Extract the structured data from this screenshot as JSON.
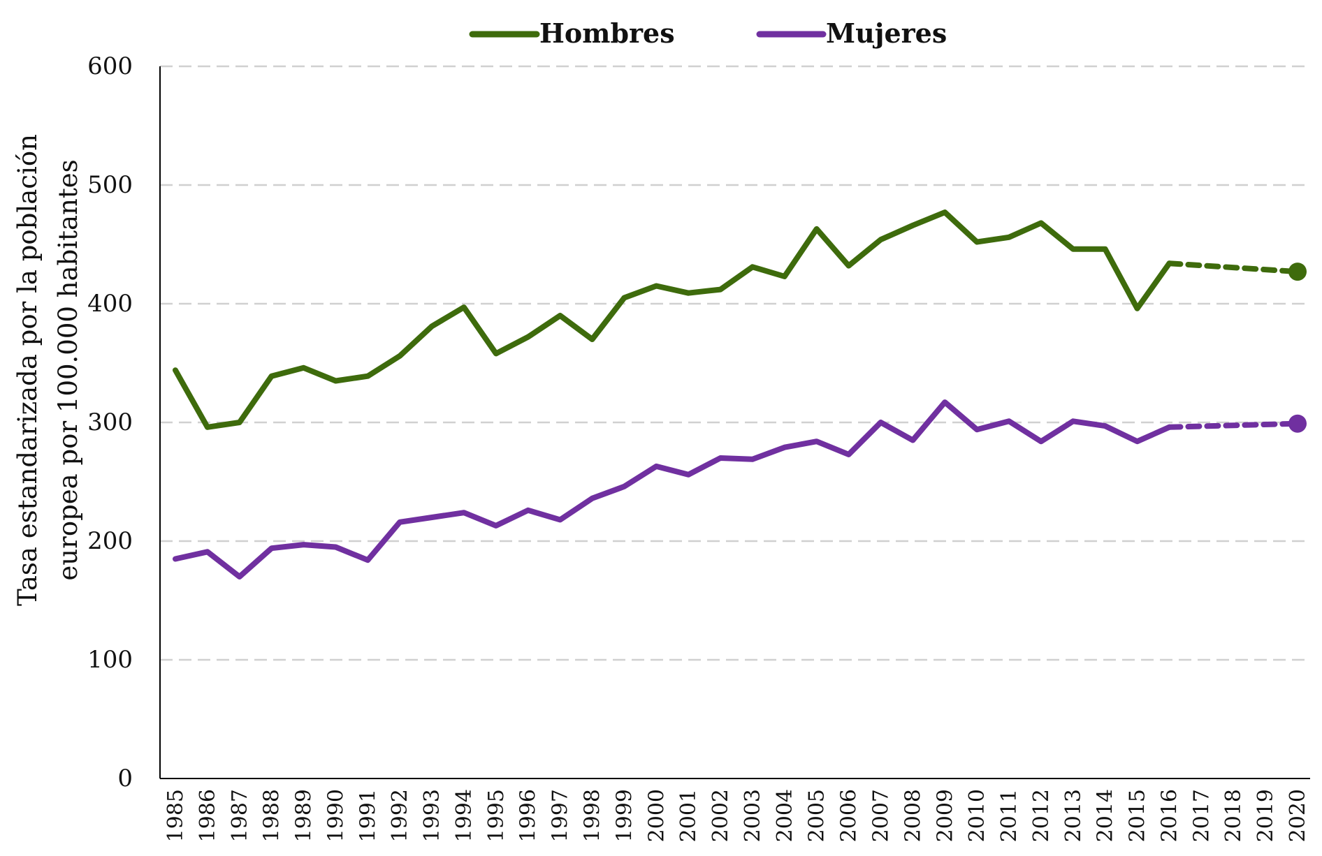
{
  "chart_data": {
    "type": "line",
    "xlabel": "",
    "ylabel_lines": [
      "Tasa estandarizada por la población",
      "europea por 100.000 habitantes"
    ],
    "ylim": [
      0,
      600
    ],
    "yticks": [
      0,
      100,
      200,
      300,
      400,
      500,
      600
    ],
    "grid": "horizontal-dashed",
    "legend_position": "top-center",
    "categories": [
      "1985",
      "1986",
      "1987",
      "1988",
      "1989",
      "1990",
      "1991",
      "1992",
      "1993",
      "1994",
      "1995",
      "1996",
      "1997",
      "1998",
      "1999",
      "2000",
      "2001",
      "2002",
      "2003",
      "2004",
      "2005",
      "2006",
      "2007",
      "2008",
      "2009",
      "2010",
      "2011",
      "2012",
      "2013",
      "2014",
      "2015",
      "2016",
      "2017",
      "2018",
      "2019",
      "2020"
    ],
    "series": [
      {
        "name": "Hombres",
        "color": "#3e6b0c",
        "observed": [
          344,
          296,
          300,
          339,
          346,
          335,
          339,
          356,
          381,
          397,
          358,
          372,
          390,
          370,
          405,
          415,
          409,
          412,
          431,
          423,
          463,
          432,
          454,
          466,
          477,
          452,
          456,
          468,
          446,
          446,
          396,
          434
        ],
        "projected_from": "2016",
        "projected_to": "2020",
        "value_2020": 427
      },
      {
        "name": "Mujeres",
        "color": "#7030a0",
        "observed": [
          185,
          191,
          170,
          194,
          197,
          195,
          184,
          216,
          220,
          224,
          213,
          226,
          218,
          236,
          246,
          263,
          256,
          270,
          269,
          279,
          284,
          273,
          300,
          285,
          317,
          294,
          301,
          284,
          301,
          297,
          284,
          296
        ],
        "projected_from": "2016",
        "projected_to": "2020",
        "value_2020": 299
      }
    ]
  }
}
